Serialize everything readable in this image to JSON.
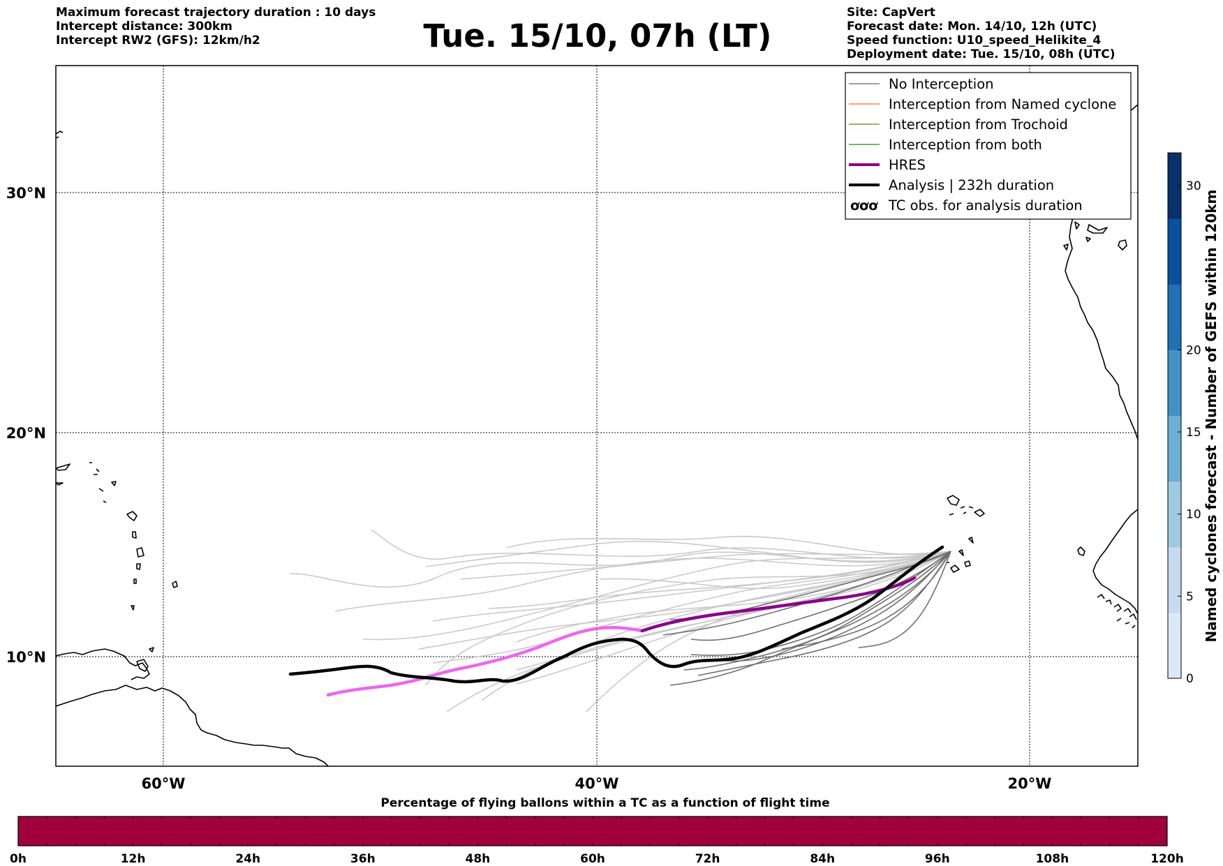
{
  "header_left": [
    "Maximum forecast trajectory duration : 10 days",
    "Intercept distance: 300km",
    "Intercept RW2 (GFS):  12km/h2"
  ],
  "title": "Tue. 15/10, 07h (LT)",
  "header_right": [
    "Site: CapVert",
    "Forecast date: Mon. 14/10, 12h (UTC)",
    "Speed function: U10_speed_Helikite_4",
    "Deployment date: Tue. 15/10, 08h (UTC)"
  ],
  "map": {
    "lon_labels": [
      "60°W",
      "40°W",
      "20°W"
    ],
    "lat_labels": [
      "30°N",
      "20°N",
      "10°N"
    ]
  },
  "legend": {
    "items": [
      {
        "label": "No Interception",
        "color": "#808080",
        "style": "thin"
      },
      {
        "label": "Interception from Named cyclone",
        "color": "#ff7f50",
        "style": "thin"
      },
      {
        "label": "Interception from Trochoid",
        "color": "#9a8c3a",
        "style": "thin"
      },
      {
        "label": "Interception from both",
        "color": "#3ca03c",
        "style": "thin"
      },
      {
        "label": "HRES",
        "color": "#8b008b",
        "style": "thick"
      },
      {
        "label": "Analysis | 232h duration",
        "color": "#000000",
        "style": "thick"
      },
      {
        "label": "TC obs. for analysis duration",
        "color": "#000000",
        "style": "symbol"
      }
    ],
    "symbol_text": "ơơơ"
  },
  "colorbar_right": {
    "label": "Named cyclones forecast - Number of GEFS within 120km",
    "ticks": [
      "0",
      "5",
      "10",
      "15",
      "20",
      "30"
    ],
    "colors": [
      "#dbe9f6",
      "#c6dbef",
      "#9ecae1",
      "#6baed6",
      "#4292c6",
      "#2171b5",
      "#08519c",
      "#08306b"
    ]
  },
  "bottom_bar": {
    "title": "Percentage of flying ballons within a TC as a function of flight time",
    "color": "#a0003c",
    "ticks": [
      "0h",
      "12h",
      "24h",
      "36h",
      "48h",
      "60h",
      "72h",
      "84h",
      "96h",
      "108h",
      "120h"
    ]
  }
}
